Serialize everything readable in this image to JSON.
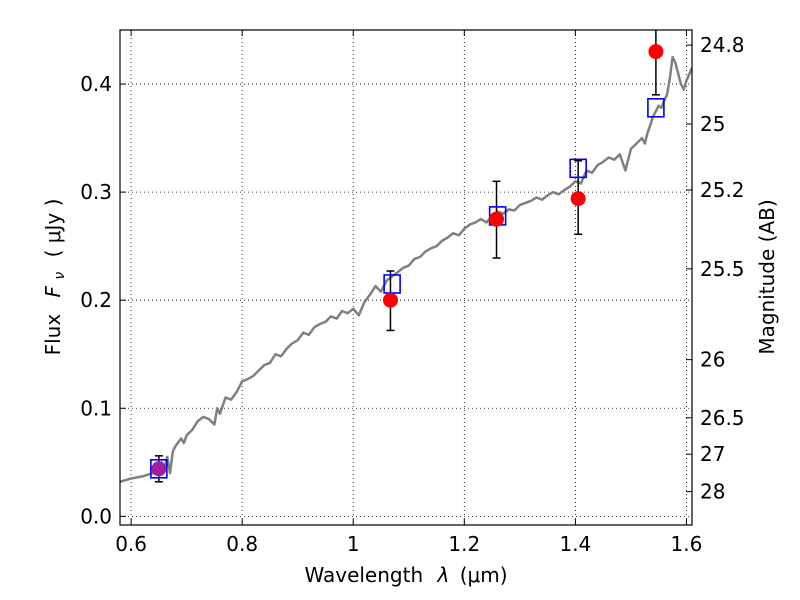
{
  "chart_data": {
    "type": "scatter",
    "xlabel_text": "Wavelength",
    "xlabel_symbol": "λ",
    "xlabel_unit": "(μm)",
    "ylabel_text": "Flux",
    "ylabel_symbol": "F",
    "ylabel_subscript": "ν",
    "ylabel_unit": "( μJy )",
    "y2label": "Magnitude (AB)",
    "xlim": [
      0.58,
      1.61
    ],
    "ylim": [
      -0.008,
      0.45
    ],
    "grid": true,
    "x_ticks": [
      0.6,
      0.8,
      1.0,
      1.2,
      1.4,
      1.6
    ],
    "x_tick_labels": [
      "0.6",
      "0.8",
      "1",
      "1.2",
      "1.4",
      "1.6"
    ],
    "y_ticks": [
      0.0,
      0.1,
      0.2,
      0.3,
      0.4
    ],
    "y_tick_labels": [
      "0.0",
      "0.1",
      "0.2",
      "0.3",
      "0.4"
    ],
    "y2_tick_labels": [
      "24.8",
      "25",
      "25.2",
      "25.5",
      "26",
      "26.5",
      "27",
      "28"
    ],
    "y2_tick_values_flux": [
      0.436,
      0.363,
      0.302,
      0.229,
      0.145,
      0.0912,
      0.0575,
      0.0229
    ],
    "model_spectrum": {
      "color": "#808080",
      "x": [
        0.58,
        0.6,
        0.62,
        0.64,
        0.645,
        0.65,
        0.655,
        0.66,
        0.665,
        0.67,
        0.675,
        0.68,
        0.69,
        0.695,
        0.7,
        0.71,
        0.72,
        0.73,
        0.74,
        0.75,
        0.755,
        0.76,
        0.77,
        0.78,
        0.79,
        0.8,
        0.81,
        0.82,
        0.83,
        0.84,
        0.85,
        0.86,
        0.87,
        0.88,
        0.89,
        0.9,
        0.91,
        0.92,
        0.93,
        0.94,
        0.95,
        0.96,
        0.97,
        0.98,
        0.99,
        1.0,
        1.01,
        1.02,
        1.03,
        1.04,
        1.05,
        1.06,
        1.07,
        1.08,
        1.09,
        1.1,
        1.11,
        1.12,
        1.13,
        1.14,
        1.15,
        1.16,
        1.17,
        1.18,
        1.19,
        1.2,
        1.21,
        1.22,
        1.23,
        1.24,
        1.25,
        1.26,
        1.27,
        1.28,
        1.29,
        1.3,
        1.31,
        1.32,
        1.33,
        1.34,
        1.35,
        1.36,
        1.37,
        1.38,
        1.39,
        1.4,
        1.41,
        1.42,
        1.43,
        1.44,
        1.45,
        1.46,
        1.47,
        1.48,
        1.49,
        1.5,
        1.51,
        1.52,
        1.525,
        1.53,
        1.535,
        1.54,
        1.545,
        1.55,
        1.555,
        1.56,
        1.565,
        1.57,
        1.575,
        1.58,
        1.585,
        1.59,
        1.595,
        1.6,
        1.61
      ],
      "y": [
        0.032,
        0.035,
        0.037,
        0.04,
        0.045,
        0.042,
        0.05,
        0.044,
        0.055,
        0.04,
        0.06,
        0.065,
        0.072,
        0.068,
        0.075,
        0.08,
        0.088,
        0.092,
        0.09,
        0.085,
        0.1,
        0.095,
        0.11,
        0.108,
        0.115,
        0.125,
        0.127,
        0.13,
        0.135,
        0.14,
        0.142,
        0.15,
        0.148,
        0.155,
        0.16,
        0.163,
        0.17,
        0.168,
        0.175,
        0.178,
        0.18,
        0.185,
        0.183,
        0.19,
        0.188,
        0.192,
        0.186,
        0.198,
        0.205,
        0.213,
        0.208,
        0.218,
        0.222,
        0.226,
        0.23,
        0.232,
        0.238,
        0.24,
        0.245,
        0.248,
        0.25,
        0.255,
        0.258,
        0.262,
        0.26,
        0.266,
        0.27,
        0.272,
        0.275,
        0.272,
        0.278,
        0.282,
        0.28,
        0.284,
        0.283,
        0.288,
        0.29,
        0.292,
        0.295,
        0.293,
        0.297,
        0.3,
        0.298,
        0.302,
        0.305,
        0.31,
        0.308,
        0.32,
        0.318,
        0.325,
        0.328,
        0.332,
        0.33,
        0.335,
        0.32,
        0.34,
        0.345,
        0.35,
        0.345,
        0.355,
        0.362,
        0.37,
        0.375,
        0.38,
        0.378,
        0.385,
        0.39,
        0.405,
        0.425,
        0.42,
        0.41,
        0.4,
        0.395,
        0.403,
        0.415
      ]
    },
    "observed": {
      "color": "#ff0000",
      "x": [
        0.65,
        1.067,
        1.258,
        1.405,
        1.545
      ],
      "y": [
        0.044,
        0.2,
        0.275,
        0.294,
        0.43
      ],
      "yerr_low": [
        0.012,
        0.028,
        0.036,
        0.033,
        0.04
      ],
      "yerr_high": [
        0.012,
        0.027,
        0.035,
        0.035,
        0.04
      ]
    },
    "synthetic": {
      "color": "#0000ff",
      "x": [
        0.65,
        1.07,
        1.26,
        1.405,
        1.545
      ],
      "y": [
        0.044,
        0.215,
        0.278,
        0.322,
        0.378
      ]
    },
    "overlap_color": "#a020a0"
  }
}
